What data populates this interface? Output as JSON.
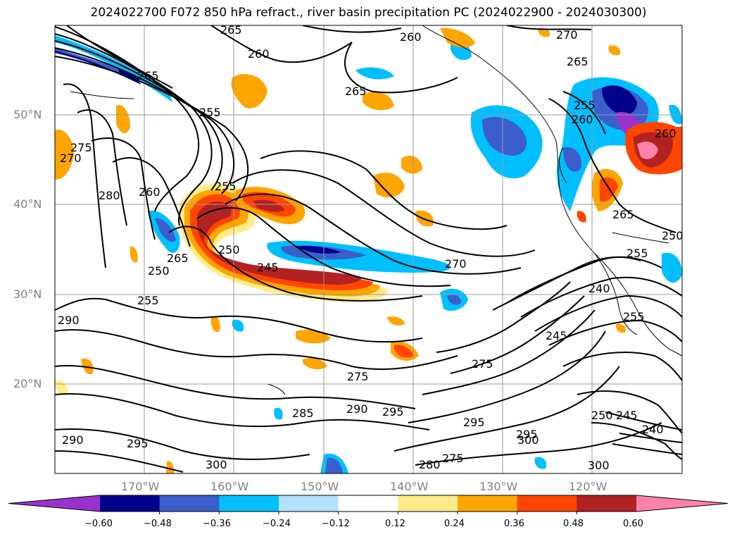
{
  "title": "2024022700 F072 850 hPa refract., river basin precipitation PC (2024022900 - 2024030300)",
  "map": {
    "lat_labels": [
      "50°N",
      "40°N",
      "30°N",
      "20°N"
    ],
    "lat_values": [
      50,
      40,
      30,
      20
    ],
    "lon_labels": [
      "170°W",
      "160°W",
      "150°W",
      "140°W",
      "130°W",
      "120°W"
    ],
    "lon_values": [
      -170,
      -160,
      -150,
      -140,
      -130,
      -120
    ],
    "extent": {
      "lon_min": -180,
      "lon_max": -110,
      "lat_min": 10,
      "lat_max": 60
    },
    "contour_labels": [
      "265",
      "260",
      "260",
      "270",
      "265",
      "265",
      "255",
      "255",
      "265",
      "260",
      "270",
      "275",
      "280",
      "260",
      "255",
      "250",
      "245",
      "250",
      "265",
      "250",
      "255",
      "270",
      "240",
      "245",
      "290",
      "275",
      "275",
      "285",
      "290",
      "295",
      "295",
      "295",
      "300",
      "300",
      "290",
      "295",
      "275",
      "280",
      "250",
      "245",
      "240",
      "260",
      "255",
      "265",
      "300",
      "255"
    ]
  },
  "colorbar": {
    "ticks": [
      "−0.60",
      "−0.48",
      "−0.36",
      "−0.24",
      "−0.12",
      "0.12",
      "0.24",
      "0.36",
      "0.48",
      "0.60"
    ],
    "colors": [
      "#9932cc",
      "#00008b",
      "#3a5fcd",
      "#00bfff",
      "#b0e2ff",
      "#ffffff",
      "#ffec8b",
      "#ffa500",
      "#ff4500",
      "#b22222",
      "#ff82ab"
    ]
  }
}
